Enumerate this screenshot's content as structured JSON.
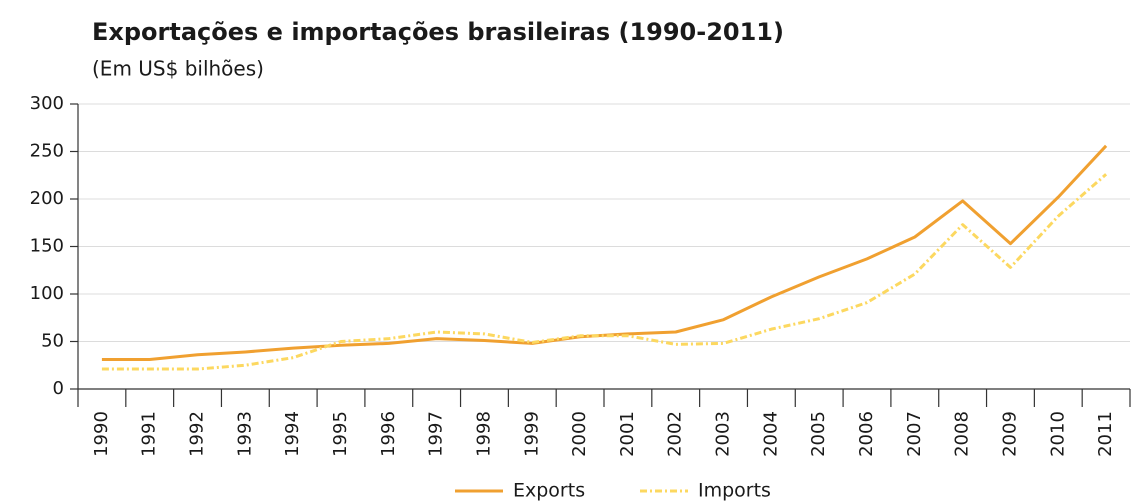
{
  "chart_data": {
    "type": "line",
    "title": "Exportações e importações brasileiras (1990-2011)",
    "subtitle": "(Em US$ bilhões)",
    "categories": [
      "1990",
      "1991",
      "1992",
      "1993",
      "1994",
      "1995",
      "1996",
      "1997",
      "1998",
      "1999",
      "2000",
      "2001",
      "2002",
      "2003",
      "2004",
      "2005",
      "2006",
      "2007",
      "2008",
      "2009",
      "2010",
      "2011"
    ],
    "series": [
      {
        "name": "Exports",
        "color": "#f0a030",
        "style": "solid",
        "values": [
          31,
          31,
          36,
          39,
          43,
          46,
          48,
          53,
          51,
          48,
          55,
          58,
          60,
          73,
          97,
          118,
          137,
          160,
          198,
          153,
          202,
          256
        ]
      },
      {
        "name": "Imports",
        "color": "#fcd860",
        "style": "dashdot",
        "values": [
          21,
          21,
          21,
          25,
          33,
          50,
          53,
          60,
          58,
          49,
          56,
          56,
          47,
          48,
          63,
          74,
          91,
          121,
          173,
          128,
          182,
          226
        ]
      }
    ],
    "ylim": [
      0,
      300
    ],
    "yticks": [
      0,
      50,
      100,
      150,
      200,
      250,
      300
    ],
    "grid": true,
    "legend": "bottom"
  }
}
